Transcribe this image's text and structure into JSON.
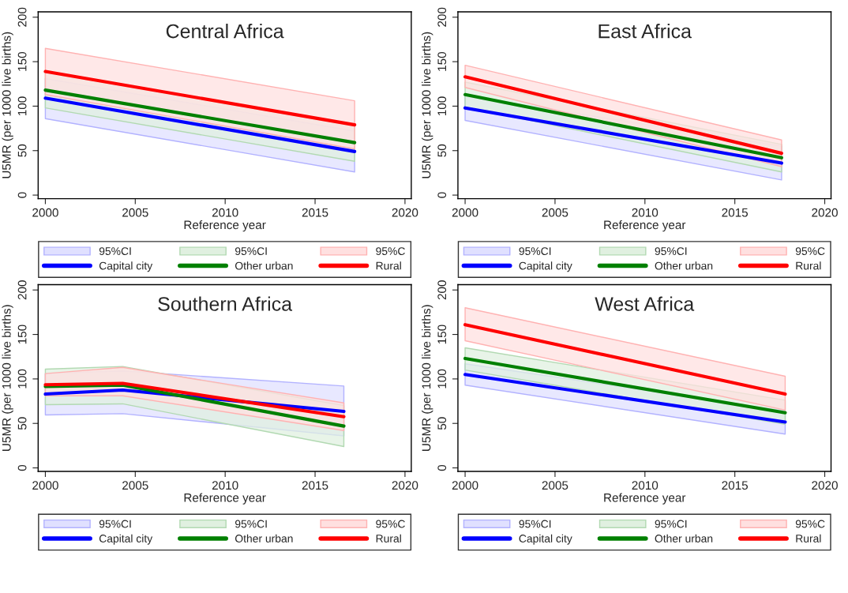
{
  "chart_data": [
    {
      "type": "line",
      "title": "Central Africa",
      "xlabel": "Reference year",
      "ylabel": "U5MR (per 1000 live births)",
      "xlim": [
        1999.6,
        2020.35
      ],
      "xticks": [
        2000,
        2005,
        2010,
        2015,
        2020
      ],
      "ylim": [
        -4,
        206
      ],
      "yticks": [
        0,
        50,
        100,
        150,
        200
      ],
      "grid": false,
      "legend": "bottom",
      "x": [
        2000,
        2017.2
      ],
      "annotations": [
        "95%CI",
        "95%CI",
        "95%C"
      ],
      "series": [
        {
          "name": "Capital city",
          "color": "#0000ff",
          "values": [
            109,
            49
          ],
          "lower": [
            86,
            26
          ],
          "upper": [
            131,
            72
          ]
        },
        {
          "name": "Other urban",
          "color": "#008000",
          "values": [
            118,
            59
          ],
          "lower": [
            98,
            38
          ],
          "upper": [
            138,
            78
          ]
        },
        {
          "name": "Rural",
          "color": "#ff0000",
          "values": [
            139,
            79
          ],
          "lower": [
            113,
            52
          ],
          "upper": [
            165,
            106
          ]
        }
      ]
    },
    {
      "type": "line",
      "title": "East Africa",
      "xlabel": "Reference year",
      "ylabel": "U5MR (per 1000 live births)",
      "xlim": [
        1999.6,
        2020.35
      ],
      "xticks": [
        2000,
        2005,
        2010,
        2015,
        2020
      ],
      "ylim": [
        -4,
        206
      ],
      "yticks": [
        0,
        50,
        100,
        150,
        200
      ],
      "grid": false,
      "legend": "bottom",
      "x": [
        2000,
        2017.6
      ],
      "annotations": [
        "95%CI",
        "95%CI",
        "95%C"
      ],
      "series": [
        {
          "name": "Capital city",
          "color": "#0000ff",
          "values": [
            98,
            36
          ],
          "lower": [
            84,
            17
          ],
          "upper": [
            112,
            55
          ]
        },
        {
          "name": "Other urban",
          "color": "#008000",
          "values": [
            113,
            42
          ],
          "lower": [
            99,
            26
          ],
          "upper": [
            127,
            57
          ]
        },
        {
          "name": "Rural",
          "color": "#ff0000",
          "values": [
            133,
            47
          ],
          "lower": [
            121,
            32
          ],
          "upper": [
            146,
            62
          ]
        }
      ]
    },
    {
      "type": "line",
      "title": "Southern Africa",
      "xlabel": "Reference year",
      "ylabel": "U5MR (per 1000 live births)",
      "xlim": [
        1999.6,
        2020.35
      ],
      "xticks": [
        2000,
        2005,
        2010,
        2015,
        2020
      ],
      "ylim": [
        -4,
        206
      ],
      "yticks": [
        0,
        50,
        100,
        150,
        200
      ],
      "grid": false,
      "legend": "bottom",
      "x": [
        2000,
        2004.3,
        2016.6
      ],
      "annotations": [
        "95%CI",
        "95%CI",
        "95%C"
      ],
      "series": [
        {
          "name": "Capital city",
          "color": "#0000ff",
          "values": [
            83,
            87.5,
            63.5
          ],
          "lower": [
            59.5,
            61,
            36
          ],
          "upper": [
            106,
            109,
            92
          ]
        },
        {
          "name": "Other urban",
          "color": "#008000",
          "values": [
            91.5,
            93,
            47
          ],
          "lower": [
            71,
            72,
            24
          ],
          "upper": [
            111,
            114,
            70
          ]
        },
        {
          "name": "Rural",
          "color": "#ff0000",
          "values": [
            93.5,
            95,
            57.5
          ],
          "lower": [
            81,
            81,
            42
          ],
          "upper": [
            106,
            113,
            73
          ]
        }
      ]
    },
    {
      "type": "line",
      "title": "West Africa",
      "xlabel": "Reference year",
      "ylabel": "U5MR (per 1000 live births)",
      "xlim": [
        1999.6,
        2020.35
      ],
      "xticks": [
        2000,
        2005,
        2010,
        2015,
        2020
      ],
      "ylim": [
        -4,
        206
      ],
      "yticks": [
        0,
        50,
        100,
        150,
        200
      ],
      "grid": false,
      "legend": "bottom",
      "x": [
        2000,
        2017.8
      ],
      "annotations": [
        "95%CI",
        "95%CI",
        "95%C"
      ],
      "series": [
        {
          "name": "Capital city",
          "color": "#0000ff",
          "values": [
            105,
            51.5
          ],
          "lower": [
            93,
            38
          ],
          "upper": [
            117,
            64
          ]
        },
        {
          "name": "Other urban",
          "color": "#008000",
          "values": [
            123,
            62
          ],
          "lower": [
            110,
            49
          ],
          "upper": [
            135,
            76
          ]
        },
        {
          "name": "Rural",
          "color": "#ff0000",
          "values": [
            161,
            83
          ],
          "lower": [
            143,
            65
          ],
          "upper": [
            180,
            103
          ]
        }
      ]
    }
  ]
}
